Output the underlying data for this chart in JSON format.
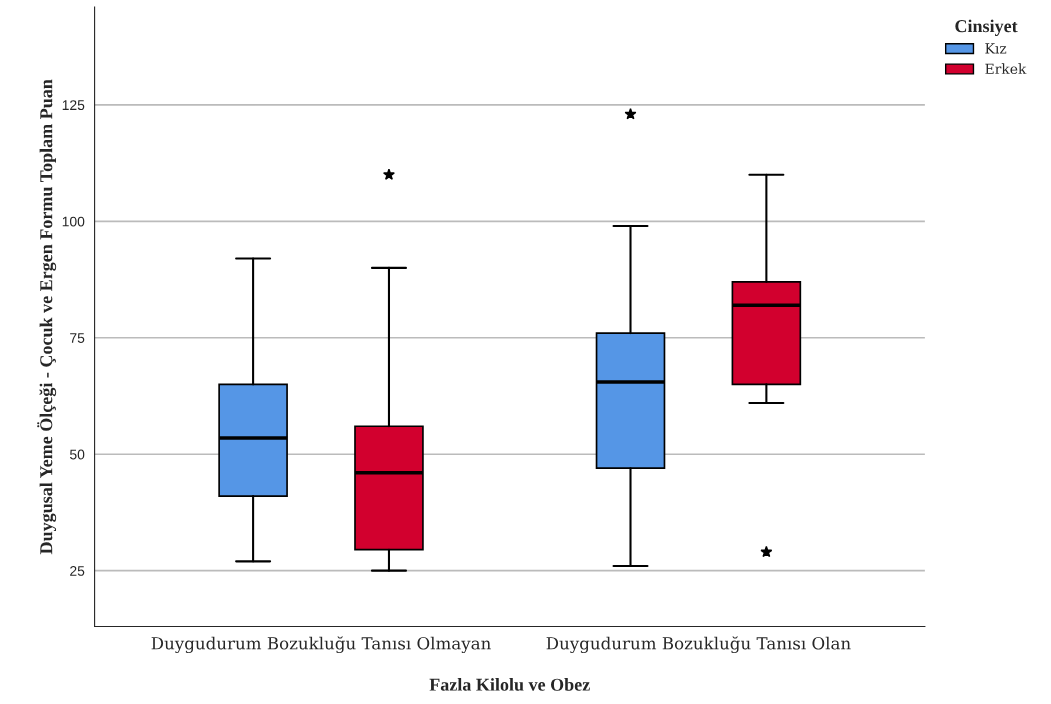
{
  "chart_data": {
    "type": "box",
    "xlabel": "Fazla Kilolu ve Obez",
    "ylabel": "Duygusal Yeme Ölçeği - Çocuk ve Ergen Formu Toplam Puan",
    "legend_title": "Cinsiyet",
    "categories": [
      "Duygudurum Bozukluğu Tanısı Olmayan",
      "Duygudurum Bozukluğu Tanısı Olan"
    ],
    "series": [
      {
        "name": "Kız",
        "color": "#5596e6",
        "boxes": [
          {
            "low": 27,
            "q1": 41,
            "median": 53.5,
            "q3": 65,
            "high": 92
          },
          {
            "low": 26,
            "q1": 47,
            "median": 65.5,
            "q3": 76,
            "high": 99,
            "outliers": [
              123
            ]
          }
        ]
      },
      {
        "name": "Erkek",
        "color": "#d2002e",
        "boxes": [
          {
            "low": 25,
            "q1": 29.5,
            "median": 46,
            "q3": 56,
            "high": 90,
            "outliers": [
              110
            ]
          },
          {
            "low": 61,
            "q1": 65,
            "median": 82,
            "q3": 87,
            "high": 110,
            "outliers": [
              29
            ]
          }
        ]
      }
    ],
    "ylim": [
      13,
      146
    ],
    "yticks": [
      25,
      50,
      75,
      100,
      125
    ],
    "grid": "y",
    "legend": "top right",
    "marker": "star"
  }
}
